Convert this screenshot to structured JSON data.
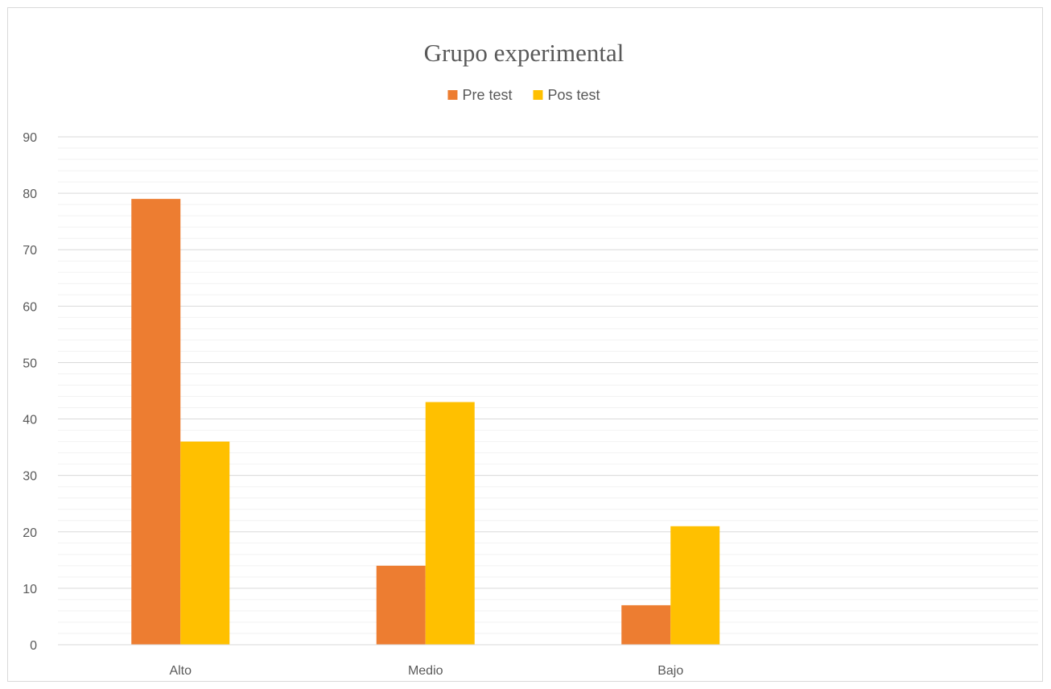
{
  "chart_data": {
    "type": "bar",
    "title": "Grupo experimental",
    "xlabel": "",
    "ylabel": "",
    "categories": [
      "Alto",
      "Medio",
      "Bajo",
      ""
    ],
    "series": [
      {
        "name": "Pre test",
        "color": "#ED7D31",
        "values": [
          79,
          14,
          7,
          null
        ]
      },
      {
        "name": "Pos test",
        "color": "#FFC000",
        "values": [
          36,
          43,
          21,
          null
        ]
      }
    ],
    "ylim": [
      0,
      90
    ],
    "yticks": [
      0,
      10,
      20,
      30,
      40,
      50,
      60,
      70,
      80,
      90
    ],
    "grid": {
      "major": true,
      "minor": true
    },
    "legend": "top-center"
  }
}
